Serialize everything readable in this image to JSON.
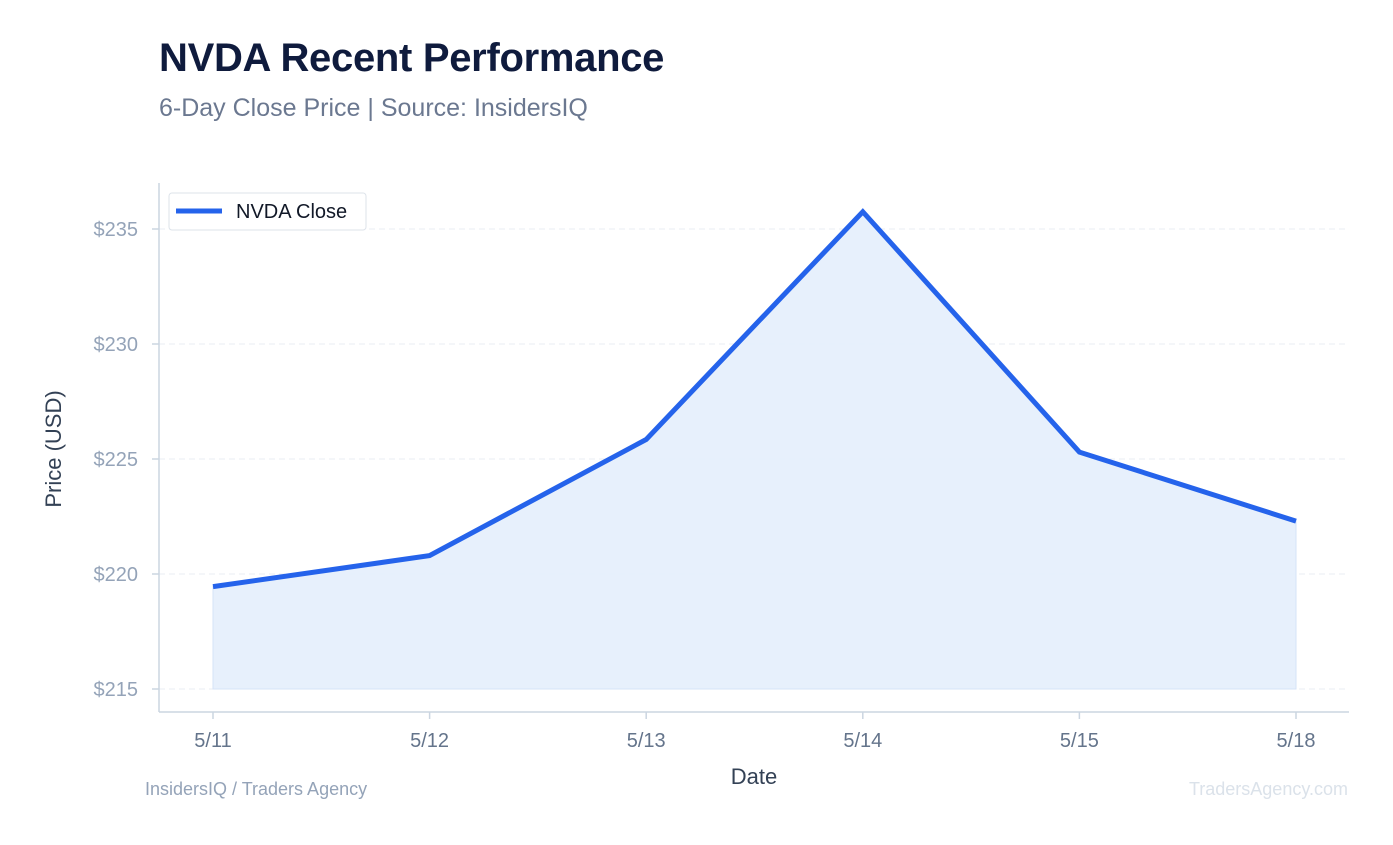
{
  "header": {
    "title": "NVDA Recent Performance",
    "subtitle": "6-Day Close Price | Source: InsidersIQ"
  },
  "footer": {
    "left": "InsidersIQ / Traders Agency",
    "right": "TradersAgency.com"
  },
  "chart_data": {
    "type": "area",
    "x": [
      "5/11",
      "5/12",
      "5/13",
      "5/14",
      "5/15",
      "5/18"
    ],
    "series": [
      {
        "name": "NVDA Close",
        "values": [
          219.45,
          220.8,
          225.85,
          235.75,
          225.3,
          222.3
        ]
      }
    ],
    "xlabel": "Date",
    "ylabel": "Price (USD)",
    "ylim": [
      214,
      237
    ],
    "yticks": [
      215,
      220,
      225,
      230,
      235
    ],
    "ytick_labels": [
      "$215",
      "$220",
      "$225",
      "$230",
      "$235"
    ],
    "grid": true,
    "legend": "top-left",
    "colors": {
      "line": "#2563eb",
      "fill": "#e6effc",
      "grid": "#e8edf3",
      "axis": "#cbd5e1"
    }
  }
}
